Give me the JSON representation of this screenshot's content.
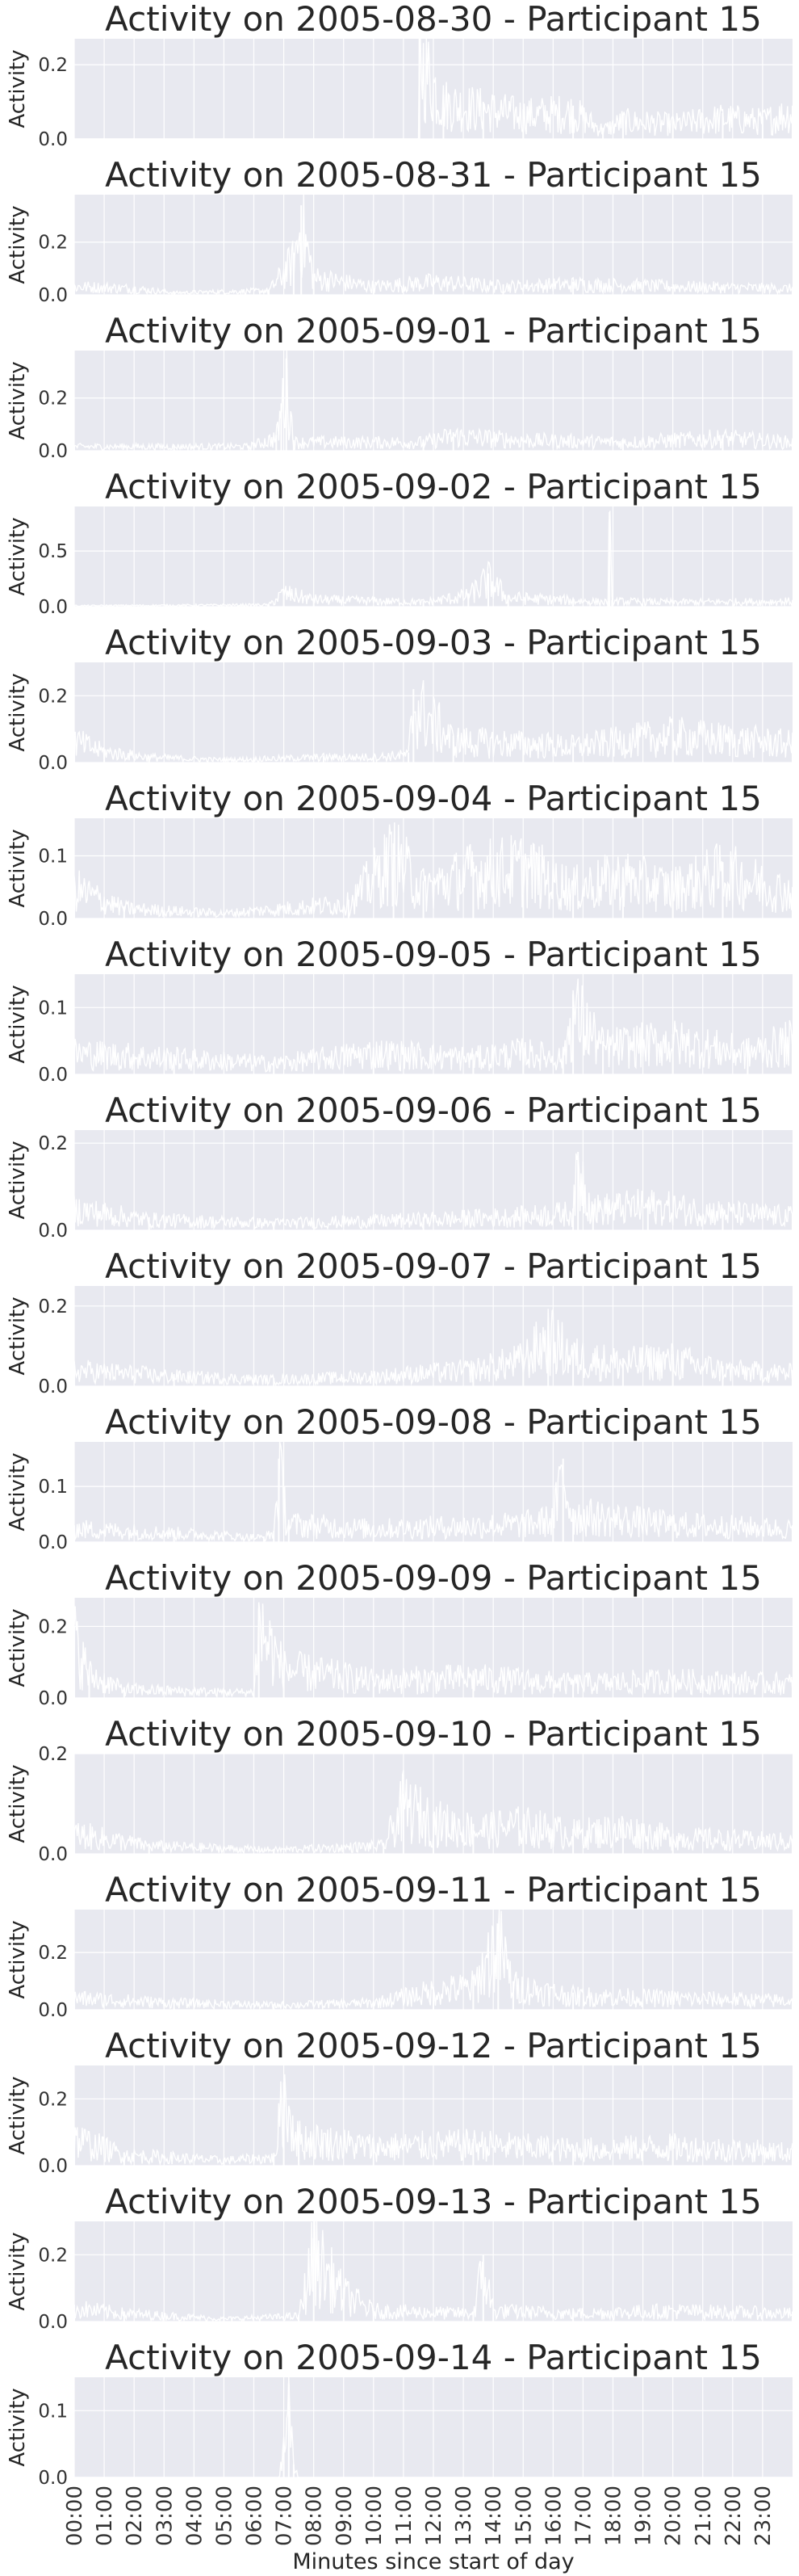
{
  "colors": {
    "plot_bg": "#e8e9f0",
    "grid": "#ffffff",
    "signal": "#ffffff",
    "text": "#262626",
    "tick": "#333333"
  },
  "shared_xlabel": "Minutes since start of day",
  "x_tick_labels": [
    "00:00",
    "01:00",
    "02:00",
    "03:00",
    "04:00",
    "05:00",
    "06:00",
    "07:00",
    "08:00",
    "09:00",
    "10:00",
    "11:00",
    "12:00",
    "13:00",
    "14:00",
    "15:00",
    "16:00",
    "17:00",
    "18:00",
    "19:00",
    "20:00",
    "21:00",
    "22:00",
    "23:00"
  ],
  "chart_data": [
    {
      "type": "line",
      "title": "Activity on 2005-08-30 - Participant 15",
      "ylabel": "Activity",
      "xlim": [
        0,
        1440
      ],
      "ylim": [
        0,
        0.27
      ],
      "yticks": [
        0.0,
        0.2
      ],
      "ytick_labels": [
        "0.0",
        "0.2"
      ],
      "grid": true,
      "keypoints": [
        [
          0,
          0
        ],
        [
          690,
          0
        ],
        [
          692,
          0.27
        ],
        [
          740,
          0.12
        ],
        [
          820,
          0.1
        ],
        [
          900,
          0.08
        ],
        [
          1000,
          0.09
        ],
        [
          1060,
          0.03
        ],
        [
          1100,
          0.06
        ],
        [
          1200,
          0.05
        ],
        [
          1300,
          0.07
        ],
        [
          1380,
          0.06
        ],
        [
          1440,
          0.09
        ]
      ]
    },
    {
      "type": "line",
      "title": "Activity on 2005-08-31 - Participant 15",
      "ylabel": "Activity",
      "xlim": [
        0,
        1440
      ],
      "ylim": [
        0,
        0.38
      ],
      "yticks": [
        0.0,
        0.2
      ],
      "ytick_labels": [
        "0.0",
        "0.2"
      ],
      "grid": true,
      "keypoints": [
        [
          0,
          0.04
        ],
        [
          120,
          0.03
        ],
        [
          200,
          0.01
        ],
        [
          390,
          0.02
        ],
        [
          440,
          0.16
        ],
        [
          455,
          0.34
        ],
        [
          480,
          0.08
        ],
        [
          600,
          0.04
        ],
        [
          720,
          0.06
        ],
        [
          860,
          0.04
        ],
        [
          1000,
          0.05
        ],
        [
          1200,
          0.04
        ],
        [
          1440,
          0.03
        ]
      ]
    },
    {
      "type": "line",
      "title": "Activity on 2005-09-01 - Participant 15",
      "ylabel": "Activity",
      "xlim": [
        0,
        1440
      ],
      "ylim": [
        0,
        0.38
      ],
      "yticks": [
        0.0,
        0.2
      ],
      "ytick_labels": [
        "0.0",
        "0.2"
      ],
      "grid": true,
      "keypoints": [
        [
          0,
          0.02
        ],
        [
          200,
          0.02
        ],
        [
          350,
          0.02
        ],
        [
          405,
          0.06
        ],
        [
          415,
          0.18
        ],
        [
          425,
          0.35
        ],
        [
          440,
          0.04
        ],
        [
          700,
          0.04
        ],
        [
          760,
          0.07
        ],
        [
          900,
          0.05
        ],
        [
          1100,
          0.04
        ],
        [
          1300,
          0.06
        ],
        [
          1440,
          0.04
        ]
      ]
    },
    {
      "type": "line",
      "title": "Activity on 2005-09-02 - Participant 15",
      "ylabel": "Activity",
      "xlim": [
        0,
        1440
      ],
      "ylim": [
        0,
        0.9
      ],
      "yticks": [
        0.0,
        0.5
      ],
      "ytick_labels": [
        "0.0",
        "0.5"
      ],
      "grid": true,
      "keypoints": [
        [
          0,
          0.01
        ],
        [
          390,
          0.02
        ],
        [
          420,
          0.15
        ],
        [
          480,
          0.08
        ],
        [
          700,
          0.05
        ],
        [
          790,
          0.12
        ],
        [
          830,
          0.3
        ],
        [
          870,
          0.1
        ],
        [
          1000,
          0.07
        ],
        [
          1070,
          0.05
        ],
        [
          1073,
          0.85
        ],
        [
          1078,
          0.06
        ],
        [
          1200,
          0.05
        ],
        [
          1440,
          0.06
        ]
      ]
    },
    {
      "type": "line",
      "title": "Activity on 2005-09-03 - Participant 15",
      "ylabel": "Activity",
      "xlim": [
        0,
        1440
      ],
      "ylim": [
        0,
        0.3
      ],
      "yticks": [
        0.0,
        0.2
      ],
      "ytick_labels": [
        "0.0",
        "0.2"
      ],
      "grid": true,
      "keypoints": [
        [
          0,
          0.08
        ],
        [
          60,
          0.04
        ],
        [
          150,
          0.02
        ],
        [
          300,
          0.01
        ],
        [
          500,
          0.02
        ],
        [
          600,
          0.02
        ],
        [
          670,
          0.03
        ],
        [
          680,
          0.22
        ],
        [
          760,
          0.08
        ],
        [
          900,
          0.07
        ],
        [
          1000,
          0.06
        ],
        [
          1200,
          0.1
        ],
        [
          1440,
          0.07
        ]
      ]
    },
    {
      "type": "line",
      "title": "Activity on 2005-09-04 - Participant 15",
      "ylabel": "Activity",
      "xlim": [
        0,
        1440
      ],
      "ylim": [
        0,
        0.16
      ],
      "yticks": [
        0.0,
        0.1
      ],
      "ytick_labels": [
        "0.0",
        "0.1"
      ],
      "grid": true,
      "keypoints": [
        [
          0,
          0.06
        ],
        [
          100,
          0.02
        ],
        [
          300,
          0.01
        ],
        [
          550,
          0.03
        ],
        [
          640,
          0.12
        ],
        [
          700,
          0.06
        ],
        [
          800,
          0.09
        ],
        [
          900,
          0.1
        ],
        [
          1000,
          0.06
        ],
        [
          1100,
          0.08
        ],
        [
          1200,
          0.06
        ],
        [
          1300,
          0.09
        ],
        [
          1440,
          0.05
        ]
      ]
    },
    {
      "type": "line",
      "title": "Activity on 2005-09-05 - Participant 15",
      "ylabel": "Activity",
      "xlim": [
        0,
        1440
      ],
      "ylim": [
        0,
        0.15
      ],
      "yticks": [
        0.0,
        0.1
      ],
      "ytick_labels": [
        "0.0",
        "0.1"
      ],
      "grid": true,
      "keypoints": [
        [
          0,
          0.04
        ],
        [
          200,
          0.03
        ],
        [
          400,
          0.02
        ],
        [
          600,
          0.04
        ],
        [
          800,
          0.03
        ],
        [
          900,
          0.04
        ],
        [
          980,
          0.03
        ],
        [
          1000,
          0.12
        ],
        [
          1060,
          0.05
        ],
        [
          1200,
          0.06
        ],
        [
          1350,
          0.04
        ],
        [
          1440,
          0.06
        ]
      ]
    },
    {
      "type": "line",
      "title": "Activity on 2005-09-06 - Participant 15",
      "ylabel": "Activity",
      "xlim": [
        0,
        1440
      ],
      "ylim": [
        0,
        0.23
      ],
      "yticks": [
        0.0,
        0.2
      ],
      "ytick_labels": [
        "0.0",
        "0.2"
      ],
      "grid": true,
      "keypoints": [
        [
          0,
          0.06
        ],
        [
          150,
          0.03
        ],
        [
          400,
          0.02
        ],
        [
          700,
          0.03
        ],
        [
          900,
          0.04
        ],
        [
          1000,
          0.05
        ],
        [
          1010,
          0.18
        ],
        [
          1040,
          0.06
        ],
        [
          1150,
          0.07
        ],
        [
          1300,
          0.05
        ],
        [
          1440,
          0.04
        ]
      ]
    },
    {
      "type": "line",
      "title": "Activity on 2005-09-07 - Participant 15",
      "ylabel": "Activity",
      "xlim": [
        0,
        1440
      ],
      "ylim": [
        0,
        0.25
      ],
      "yticks": [
        0.0,
        0.2
      ],
      "ytick_labels": [
        "0.0",
        "0.2"
      ],
      "grid": true,
      "keypoints": [
        [
          0,
          0.05
        ],
        [
          200,
          0.03
        ],
        [
          400,
          0.02
        ],
        [
          600,
          0.03
        ],
        [
          800,
          0.05
        ],
        [
          900,
          0.08
        ],
        [
          950,
          0.15
        ],
        [
          1000,
          0.09
        ],
        [
          1100,
          0.07
        ],
        [
          1200,
          0.08
        ],
        [
          1300,
          0.05
        ],
        [
          1440,
          0.04
        ]
      ]
    },
    {
      "type": "line",
      "title": "Activity on 2005-09-08 - Participant 15",
      "ylabel": "Activity",
      "xlim": [
        0,
        1440
      ],
      "ylim": [
        0,
        0.18
      ],
      "yticks": [
        0.0,
        0.1
      ],
      "ytick_labels": [
        "0.0",
        "0.1"
      ],
      "grid": true,
      "keypoints": [
        [
          0,
          0.03
        ],
        [
          200,
          0.02
        ],
        [
          380,
          0.01
        ],
        [
          400,
          0.02
        ],
        [
          410,
          0.15
        ],
        [
          430,
          0.04
        ],
        [
          600,
          0.03
        ],
        [
          900,
          0.04
        ],
        [
          960,
          0.05
        ],
        [
          980,
          0.15
        ],
        [
          1000,
          0.06
        ],
        [
          1200,
          0.04
        ],
        [
          1440,
          0.03
        ]
      ]
    },
    {
      "type": "line",
      "title": "Activity on 2005-09-09 - Participant 15",
      "ylabel": "Activity",
      "xlim": [
        0,
        1440
      ],
      "ylim": [
        0,
        0.28
      ],
      "yticks": [
        0.0,
        0.2
      ],
      "ytick_labels": [
        "0.0",
        "0.2"
      ],
      "grid": true,
      "keypoints": [
        [
          0,
          0.2
        ],
        [
          30,
          0.08
        ],
        [
          100,
          0.03
        ],
        [
          300,
          0.02
        ],
        [
          360,
          0.02
        ],
        [
          370,
          0.25
        ],
        [
          420,
          0.1
        ],
        [
          600,
          0.06
        ],
        [
          800,
          0.07
        ],
        [
          1000,
          0.05
        ],
        [
          1200,
          0.06
        ],
        [
          1440,
          0.05
        ]
      ]
    },
    {
      "type": "line",
      "title": "Activity on 2005-09-10 - Participant 15",
      "ylabel": "Activity",
      "xlim": [
        0,
        1440
      ],
      "ylim": [
        0,
        0.2
      ],
      "yticks": [
        0.0,
        0.2
      ],
      "ytick_labels": [
        "0.0",
        "0.2"
      ],
      "grid": true,
      "keypoints": [
        [
          0,
          0.05
        ],
        [
          150,
          0.02
        ],
        [
          400,
          0.01
        ],
        [
          620,
          0.02
        ],
        [
          660,
          0.12
        ],
        [
          720,
          0.08
        ],
        [
          800,
          0.06
        ],
        [
          900,
          0.07
        ],
        [
          1000,
          0.05
        ],
        [
          1100,
          0.06
        ],
        [
          1200,
          0.04
        ],
        [
          1440,
          0.03
        ]
      ]
    },
    {
      "type": "line",
      "title": "Activity on 2005-09-11 - Participant 15",
      "ylabel": "Activity",
      "xlim": [
        0,
        1440
      ],
      "ylim": [
        0,
        0.35
      ],
      "yticks": [
        0.0,
        0.2
      ],
      "ytick_labels": [
        "0.0",
        "0.2"
      ],
      "grid": true,
      "keypoints": [
        [
          0,
          0.05
        ],
        [
          200,
          0.03
        ],
        [
          400,
          0.02
        ],
        [
          600,
          0.03
        ],
        [
          720,
          0.08
        ],
        [
          800,
          0.1
        ],
        [
          850,
          0.3
        ],
        [
          880,
          0.1
        ],
        [
          1000,
          0.06
        ],
        [
          1200,
          0.05
        ],
        [
          1440,
          0.04
        ]
      ]
    },
    {
      "type": "line",
      "title": "Activity on 2005-09-12 - Participant 15",
      "ylabel": "Activity",
      "xlim": [
        0,
        1440
      ],
      "ylim": [
        0,
        0.3
      ],
      "yticks": [
        0.0,
        0.2
      ],
      "ytick_labels": [
        "0.0",
        "0.2"
      ],
      "grid": true,
      "keypoints": [
        [
          0,
          0.1
        ],
        [
          100,
          0.04
        ],
        [
          300,
          0.02
        ],
        [
          400,
          0.03
        ],
        [
          420,
          0.25
        ],
        [
          450,
          0.1
        ],
        [
          600,
          0.07
        ],
        [
          800,
          0.08
        ],
        [
          1000,
          0.06
        ],
        [
          1200,
          0.07
        ],
        [
          1440,
          0.05
        ]
      ]
    },
    {
      "type": "line",
      "title": "Activity on 2005-09-13 - Participant 15",
      "ylabel": "Activity",
      "xlim": [
        0,
        1440
      ],
      "ylim": [
        0,
        0.3
      ],
      "yticks": [
        0.0,
        0.2
      ],
      "ytick_labels": [
        "0.0",
        "0.2"
      ],
      "grid": true,
      "keypoints": [
        [
          0,
          0.05
        ],
        [
          100,
          0.03
        ],
        [
          300,
          0.01
        ],
        [
          450,
          0.02
        ],
        [
          480,
          0.25
        ],
        [
          540,
          0.1
        ],
        [
          600,
          0.04
        ],
        [
          800,
          0.03
        ],
        [
          820,
          0.2
        ],
        [
          840,
          0.04
        ],
        [
          1000,
          0.03
        ],
        [
          1200,
          0.04
        ],
        [
          1440,
          0.03
        ]
      ]
    },
    {
      "type": "line",
      "title": "Activity on 2005-09-14 - Participant 15",
      "ylabel": "Activity",
      "xlim": [
        0,
        1440
      ],
      "ylim": [
        0,
        0.15
      ],
      "yticks": [
        0.0,
        0.1
      ],
      "ytick_labels": [
        "0.0",
        "0.1"
      ],
      "grid": true,
      "keypoints": [
        [
          0,
          0.0
        ],
        [
          410,
          0.0
        ],
        [
          420,
          0.05
        ],
        [
          430,
          0.14
        ],
        [
          440,
          0.02
        ],
        [
          450,
          0.0
        ],
        [
          1440,
          0.0
        ]
      ]
    }
  ]
}
